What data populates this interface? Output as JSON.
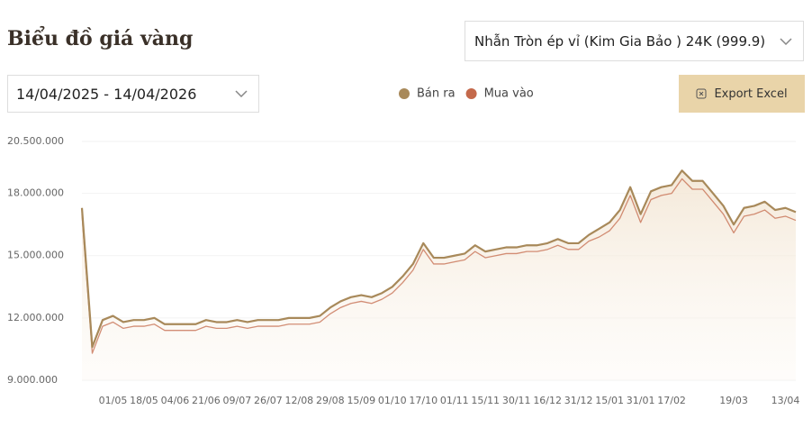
{
  "header": {
    "title": "Biểu đồ giá vàng"
  },
  "product_select": "Nhẫn Tròn ép vỉ (Kim Gia Bảo ) 24K (999.9)",
  "date_range": "14/04/2025 - 14/04/2026",
  "export_button": "Export Excel",
  "chart_data": {
    "type": "line",
    "categories": [
      null,
      null,
      null,
      "01/05",
      null,
      null,
      "18/05",
      null,
      null,
      "04/06",
      null,
      null,
      "21/06",
      null,
      null,
      "09/07",
      null,
      null,
      "26/07",
      null,
      null,
      "12/08",
      null,
      null,
      "29/08",
      null,
      null,
      "15/09",
      null,
      null,
      "01/10",
      null,
      null,
      "17/10",
      null,
      null,
      "01/11",
      null,
      null,
      "15/11",
      null,
      null,
      "30/11",
      null,
      null,
      "16/12",
      null,
      null,
      "31/12",
      null,
      null,
      "15/01",
      null,
      null,
      "31/01",
      null,
      null,
      "17/02",
      null,
      null,
      null,
      null,
      null,
      "19/03",
      null,
      null,
      null,
      null,
      "13/04",
      null
    ],
    "series": [
      {
        "name": "Bán ra",
        "color": "#a8895a",
        "values": [
          17300000,
          10600000,
          11900000,
          12100000,
          11800000,
          11900000,
          11900000,
          12000000,
          11700000,
          11700000,
          11700000,
          11700000,
          11900000,
          11800000,
          11800000,
          11900000,
          11800000,
          11900000,
          11900000,
          11900000,
          12000000,
          12000000,
          12000000,
          12100000,
          12500000,
          12800000,
          13000000,
          13100000,
          13000000,
          13200000,
          13500000,
          14000000,
          14600000,
          15600000,
          14900000,
          14900000,
          15000000,
          15100000,
          15500000,
          15200000,
          15300000,
          15400000,
          15400000,
          15500000,
          15500000,
          15600000,
          15800000,
          15600000,
          15600000,
          16000000,
          16300000,
          16600000,
          17200000,
          18300000,
          17000000,
          18100000,
          18300000,
          18400000,
          19100000,
          18600000,
          18600000,
          18000000,
          17400000,
          16500000,
          17300000,
          17400000,
          17600000,
          17200000,
          17300000,
          17100000
        ]
      },
      {
        "name": "Mua vào",
        "color": "#c4694b",
        "values": [
          17000000,
          10300000,
          11600000,
          11800000,
          11500000,
          11600000,
          11600000,
          11700000,
          11400000,
          11400000,
          11400000,
          11400000,
          11600000,
          11500000,
          11500000,
          11600000,
          11500000,
          11600000,
          11600000,
          11600000,
          11700000,
          11700000,
          11700000,
          11800000,
          12200000,
          12500000,
          12700000,
          12800000,
          12700000,
          12900000,
          13200000,
          13700000,
          14300000,
          15300000,
          14600000,
          14600000,
          14700000,
          14800000,
          15200000,
          14900000,
          15000000,
          15100000,
          15100000,
          15200000,
          15200000,
          15300000,
          15500000,
          15300000,
          15300000,
          15700000,
          15900000,
          16200000,
          16800000,
          17900000,
          16600000,
          17700000,
          17900000,
          18000000,
          18700000,
          18200000,
          18200000,
          17600000,
          17000000,
          16100000,
          16900000,
          17000000,
          17200000,
          16800000,
          16900000,
          16700000
        ]
      }
    ],
    "ylim": [
      9000000,
      20500000
    ],
    "yticks": [
      {
        "value": 9000000,
        "label": "9.000.000"
      },
      {
        "value": 12000000,
        "label": "12.000.000"
      },
      {
        "value": 15000000,
        "label": "15.000.000"
      },
      {
        "value": 18000000,
        "label": "18.000.000"
      },
      {
        "value": 20500000,
        "label": "20.500.000"
      }
    ],
    "grid": true
  }
}
